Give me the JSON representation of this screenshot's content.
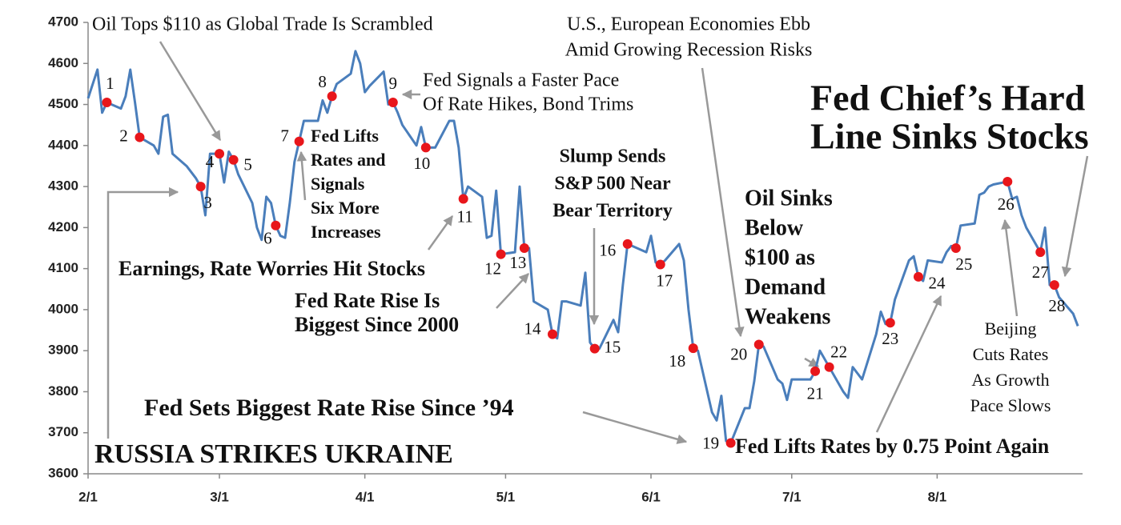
{
  "chart_data": {
    "type": "line",
    "x": [
      0,
      2,
      3,
      4,
      7,
      8,
      9,
      10,
      11,
      14,
      15,
      16,
      17,
      18,
      21,
      23,
      24,
      25,
      26,
      28,
      29,
      30,
      31,
      32,
      35,
      36,
      37,
      38,
      39,
      40,
      41,
      42,
      43,
      44,
      45,
      46,
      49,
      50,
      51,
      52,
      53,
      56,
      57,
      58,
      59,
      60,
      63,
      64,
      65,
      66,
      67,
      70,
      71,
      72,
      73,
      74,
      77,
      78,
      79,
      80,
      81,
      84,
      85,
      86,
      87,
      88,
      91,
      92,
      93,
      94,
      95,
      98,
      99,
      100,
      101,
      102,
      105,
      106,
      107,
      108,
      109,
      112,
      113,
      114,
      115,
      116,
      119,
      120,
      121,
      122,
      123,
      126,
      127,
      128,
      129,
      130,
      133,
      134,
      135,
      136,
      137,
      140,
      141,
      142,
      143,
      144,
      147,
      148,
      149,
      150,
      154,
      155,
      156,
      157,
      158,
      161,
      162,
      163,
      164,
      165,
      168,
      169,
      170,
      171,
      172,
      175,
      176,
      177,
      178,
      179,
      182,
      183,
      184,
      185,
      186,
      189,
      190,
      191,
      192,
      193,
      196,
      197,
      198,
      199,
      200,
      203,
      204,
      205,
      206,
      207,
      210,
      211
    ],
    "series": [
      {
        "color": "#4a7ebb",
        "values": [
          4515,
          4585,
          4480,
          4505,
          4490,
          4520,
          4585,
          4505,
          4420,
          4400,
          4380,
          4470,
          4475,
          4380,
          4350,
          4320,
          4300,
          4230,
          4380,
          4380,
          4310,
          4385,
          4365,
          4330,
          4260,
          4200,
          4170,
          4275,
          4260,
          4205,
          4180,
          4175,
          4260,
          4360,
          4410,
          4460,
          4460,
          4510,
          4480,
          4520,
          4550,
          4575,
          4630,
          4600,
          4530,
          4545,
          4580,
          4500,
          4505,
          4480,
          4450,
          4400,
          4445,
          4395,
          4395,
          4395,
          4460,
          4460,
          4395,
          4270,
          4300,
          4275,
          4175,
          4180,
          4290,
          4135,
          4140,
          4300,
          4150,
          4150,
          4020,
          4000,
          3940,
          3930,
          4020,
          4020,
          4010,
          4090,
          3920,
          3905,
          3905,
          3975,
          3945,
          4060,
          4160,
          4155,
          4140,
          4180,
          4115,
          4110,
          4120,
          4160,
          4120,
          4000,
          3906,
          3900,
          3750,
          3730,
          3790,
          3680,
          3675,
          3760,
          3760,
          3825,
          3915,
          3910,
          3830,
          3820,
          3780,
          3830,
          3830,
          3850,
          3900,
          3880,
          3860,
          3800,
          3785,
          3860,
          3845,
          3830,
          3940,
          3995,
          3965,
          3968,
          4025,
          4120,
          4130,
          4080,
          4070,
          4120,
          4115,
          4140,
          4155,
          4150,
          4205,
          4210,
          4280,
          4285,
          4300,
          4305,
          4312,
          4270,
          4275,
          4230,
          4200,
          4140,
          4200,
          4060,
          4060,
          4030,
          3990,
          3960
        ]
      }
    ],
    "markers": [
      {
        "label": "1",
        "x": 4,
        "value": 4505
      },
      {
        "label": "2",
        "x": 11,
        "value": 4420
      },
      {
        "label": "3",
        "x": 24,
        "value": 4300
      },
      {
        "label": "4",
        "x": 28,
        "value": 4380
      },
      {
        "label": "5",
        "x": 31,
        "value": 4365
      },
      {
        "label": "6",
        "x": 40,
        "value": 4205
      },
      {
        "label": "7",
        "x": 45,
        "value": 4410
      },
      {
        "label": "8",
        "x": 52,
        "value": 4520
      },
      {
        "label": "9",
        "x": 65,
        "value": 4505
      },
      {
        "label": "10",
        "x": 72,
        "value": 4395
      },
      {
        "label": "11",
        "x": 80,
        "value": 4270
      },
      {
        "label": "12",
        "x": 88,
        "value": 4135
      },
      {
        "label": "13",
        "x": 93,
        "value": 4150
      },
      {
        "label": "14",
        "x": 99,
        "value": 3940
      },
      {
        "label": "15",
        "x": 108,
        "value": 3905
      },
      {
        "label": "16",
        "x": 115,
        "value": 4160
      },
      {
        "label": "17",
        "x": 122,
        "value": 4110
      },
      {
        "label": "18",
        "x": 129,
        "value": 3906
      },
      {
        "label": "19",
        "x": 137,
        "value": 3675
      },
      {
        "label": "20",
        "x": 143,
        "value": 3915
      },
      {
        "label": "21",
        "x": 155,
        "value": 3850
      },
      {
        "label": "22",
        "x": 158,
        "value": 3860
      },
      {
        "label": "23",
        "x": 171,
        "value": 3968
      },
      {
        "label": "24",
        "x": 177,
        "value": 4080
      },
      {
        "label": "25",
        "x": 185,
        "value": 4150
      },
      {
        "label": "26",
        "x": 196,
        "value": 4312
      },
      {
        "label": "27",
        "x": 203,
        "value": 4140
      },
      {
        "label": "28",
        "x": 206,
        "value": 4060
      }
    ],
    "marker_color": "#e8161b",
    "annotations": [
      [
        "Oil Tops $110 as Global Trade Is Scrambled"
      ],
      [
        "U.S., European Economies Ebb",
        "Amid Growing Recession Risks"
      ],
      [
        "Fed Signals a Faster Pace",
        "Of Rate Hikes, Bond Trims"
      ],
      [
        "Fed Chief’s Hard",
        "Line Sinks Stocks"
      ],
      [
        "Fed Lifts",
        "Rates and",
        "Signals",
        "Six More",
        "Increases"
      ],
      [
        "Slump Sends",
        "S&P 500 Near",
        "Bear Territory"
      ],
      [
        "Earnings, Rate Worries Hit Stocks"
      ],
      [
        "Fed Rate Rise Is",
        "Biggest Since 2000"
      ],
      [
        "Oil Sinks",
        "Below",
        "$100 as",
        "Demand",
        "Weakens"
      ],
      [
        "Beijing",
        "Cuts Rates",
        "As Growth",
        "Pace Slows"
      ],
      [
        "Fed Sets Biggest Rate Rise Since ’94"
      ],
      [
        "Fed Lifts Rates by 0.75 Point Again"
      ],
      [
        "RUSSIA STRIKES UKRAINE"
      ]
    ],
    "xlim": [
      0,
      212
    ],
    "xticks": [
      {
        "value": 0,
        "label": "2/1"
      },
      {
        "value": 28,
        "label": "3/1"
      },
      {
        "value": 59,
        "label": "4/1"
      },
      {
        "value": 89,
        "label": "5/1"
      },
      {
        "value": 120,
        "label": "6/1"
      },
      {
        "value": 150,
        "label": "7/1"
      },
      {
        "value": 181,
        "label": "8/1"
      }
    ],
    "ylim": [
      3600,
      4700
    ],
    "yticks": [
      3600,
      3700,
      3800,
      3900,
      4000,
      4100,
      4200,
      4300,
      4400,
      4500,
      4600,
      4700
    ],
    "grid": false
  }
}
